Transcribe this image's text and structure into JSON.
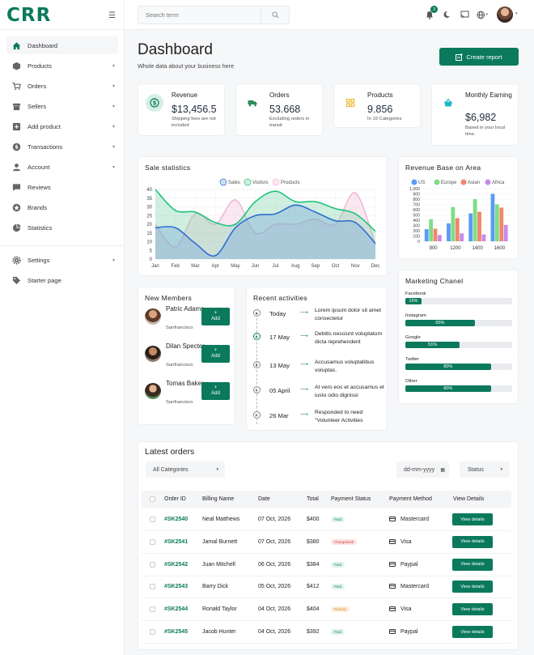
{
  "brand": "CRR",
  "sidebar": {
    "items": [
      {
        "label": "Dashboard",
        "icon": "home-icon",
        "caret": false,
        "active": true
      },
      {
        "label": "Products",
        "icon": "box-icon",
        "caret": true
      },
      {
        "label": "Orders",
        "icon": "cart-icon",
        "caret": true
      },
      {
        "label": "Sellers",
        "icon": "shop-icon",
        "caret": true
      },
      {
        "label": "Add product",
        "icon": "plus-square-icon",
        "caret": true
      },
      {
        "label": "Transactions",
        "icon": "dollar-icon",
        "caret": true
      },
      {
        "label": "Account",
        "icon": "user-icon",
        "caret": true
      },
      {
        "label": "Reviews",
        "icon": "message-icon",
        "caret": false
      },
      {
        "label": "Brands",
        "icon": "star-icon",
        "caret": false
      },
      {
        "label": "Statistics",
        "icon": "pie-icon",
        "caret": false
      }
    ],
    "bottom_items": [
      {
        "label": "Settings",
        "icon": "gear-icon",
        "caret": true
      },
      {
        "label": "Starter page",
        "icon": "tag-icon",
        "caret": false
      }
    ]
  },
  "search": {
    "placeholder": "Search term"
  },
  "notifications": {
    "count": "3"
  },
  "header": {
    "title": "Dashboard",
    "subtitle": "Whole data about your business here",
    "report_button": "Create report"
  },
  "stats": [
    {
      "label": "Revenue",
      "value": "$13,456.5",
      "note": "Shipping fees are not included",
      "icon": "dollar-circle-icon",
      "color": "#0b7a5c",
      "bg": "#d6efe6"
    },
    {
      "label": "Orders",
      "value": "53.668",
      "note": "Excluding orders in transit",
      "icon": "truck-icon",
      "color": "#2e8b57",
      "bg": "#ffffff"
    },
    {
      "label": "Products",
      "value": "9.856",
      "note": "In 19 Categories",
      "icon": "grid-icon",
      "color": "#e8b92c",
      "bg": "#ffffff"
    },
    {
      "label": "Monthly Earning",
      "value": "$6,982",
      "note": "Based in your local time.",
      "icon": "basket-icon",
      "color": "#21b7c8",
      "bg": "#ffffff"
    }
  ],
  "sale_stats": {
    "title": "Sale statistics"
  },
  "revenue_area": {
    "title": "Revenue Base on Area"
  },
  "chart_data": [
    {
      "type": "area",
      "title": "Sale statistics",
      "x": [
        "Jan",
        "Feb",
        "Mar",
        "Apr",
        "May",
        "Jun",
        "Jul",
        "Aug",
        "Sep",
        "Oct",
        "Nov",
        "Dec"
      ],
      "yticks": [
        "0",
        "5",
        "10",
        "15",
        "20",
        "25",
        "30",
        "35",
        "40"
      ],
      "ylim": [
        0,
        40
      ],
      "legend_position": "top",
      "series": [
        {
          "name": "Sales",
          "color": "#2d6fd0",
          "fill": "rgba(110,160,220,0.35)",
          "values": [
            18,
            18,
            9,
            2,
            18,
            25,
            26,
            31,
            27,
            22,
            21,
            9
          ]
        },
        {
          "name": "Visitors",
          "color": "#1fc47a",
          "fill": "rgba(120,210,170,0.35)",
          "values": [
            40,
            28,
            27,
            21,
            20,
            33,
            39,
            33,
            33,
            29,
            26,
            16
          ]
        },
        {
          "name": "Products",
          "color": "#f1b7d6",
          "fill": "rgba(240,190,215,0.35)",
          "values": [
            20,
            7,
            26,
            20,
            34,
            15,
            20,
            20,
            23,
            20,
            38,
            8
          ]
        }
      ]
    },
    {
      "type": "bar",
      "title": "Revenue Base on Area",
      "categories": [
        "900",
        "1200",
        "1400",
        "1600"
      ],
      "yticks": [
        "0",
        "100",
        "200",
        "300",
        "400",
        "500",
        "600",
        "700",
        "800",
        "900",
        "1,000"
      ],
      "ylim": [
        0,
        1000
      ],
      "legend_position": "top",
      "series": [
        {
          "name": "US",
          "color": "#5b9bf1",
          "values": [
            230,
            340,
            530,
            900
          ]
        },
        {
          "name": "Europe",
          "color": "#7fdd85",
          "values": [
            420,
            650,
            800,
            700
          ]
        },
        {
          "name": "Asian",
          "color": "#f2866b",
          "values": [
            240,
            440,
            560,
            640
          ]
        },
        {
          "name": "Africa",
          "color": "#c58bea",
          "values": [
            120,
            150,
            130,
            310
          ]
        }
      ]
    }
  ],
  "members": {
    "title": "New Members",
    "add_label": "+\nAdd",
    "items": [
      {
        "name": "Patric Adams",
        "location": "Sanfrancisco"
      },
      {
        "name": "Dilan Specter",
        "location": "Sanfrancisco"
      },
      {
        "name": "Tomas Baker",
        "location": "Sanfrancisco"
      }
    ]
  },
  "activities": {
    "title": "Recent activities",
    "items": [
      {
        "date": "Today",
        "text": "Lorem ipsum dolor sit amet consectetur",
        "active": false
      },
      {
        "date": "17 May",
        "text": "Debitis nesciunt voluptatum dicta reprehenderit",
        "active": true
      },
      {
        "date": "13 May",
        "text": "Accusamus voluptatibus voluptas.",
        "active": false
      },
      {
        "date": "05 April",
        "text": "At vero eos et accusamus et iusto odio dignissi",
        "active": false
      },
      {
        "date": "26 Mar",
        "text": "Responded to need \"Volunteer Activities",
        "active": false
      }
    ]
  },
  "marketing": {
    "title": "Marketing Chanel",
    "items": [
      {
        "label": "Facebook",
        "percent": 15,
        "text": "15%"
      },
      {
        "label": "Instagram",
        "percent": 65,
        "text": "65%"
      },
      {
        "label": "Google",
        "percent": 51,
        "text": "51%"
      },
      {
        "label": "Twitter",
        "percent": 80,
        "text": "80%"
      },
      {
        "label": "Other",
        "percent": 80,
        "text": "80%"
      }
    ]
  },
  "orders": {
    "title": "Latest orders",
    "category_filter": "All Categories",
    "date_placeholder": "dd-mm-yyyy",
    "status_filter": "Status",
    "columns": [
      "Order ID",
      "Billing Name",
      "Date",
      "Total",
      "Payment Status",
      "Payment Method",
      "View Details"
    ],
    "view_label": "View details",
    "rows": [
      {
        "id": "#SK2540",
        "name": "Neal Matthews",
        "date": "07 Oct, 2026",
        "total": "$400",
        "status": "Paid",
        "status_type": "paid",
        "method": "Mastercard"
      },
      {
        "id": "#SK2541",
        "name": "Jamal Burnett",
        "date": "07 Oct, 2026",
        "total": "$380",
        "status": "Chargeback",
        "status_type": "charge",
        "method": "Visa"
      },
      {
        "id": "#SK2542",
        "name": "Juan Mitchell",
        "date": "06 Oct, 2026",
        "total": "$384",
        "status": "Paid",
        "status_type": "paid",
        "method": "Paypal"
      },
      {
        "id": "#SK2543",
        "name": "Barry Dick",
        "date": "05 Oct, 2026",
        "total": "$412",
        "status": "Paid",
        "status_type": "paid",
        "method": "Mastercard"
      },
      {
        "id": "#SK2544",
        "name": "Ronald Taylor",
        "date": "04 Oct, 2026",
        "total": "$404",
        "status": "Refund",
        "status_type": "refund",
        "method": "Visa"
      },
      {
        "id": "#SK2545",
        "name": "Jacob Hunter",
        "date": "04 Oct, 2026",
        "total": "$392",
        "status": "Paid",
        "status_type": "paid",
        "method": "Paypal"
      }
    ]
  }
}
